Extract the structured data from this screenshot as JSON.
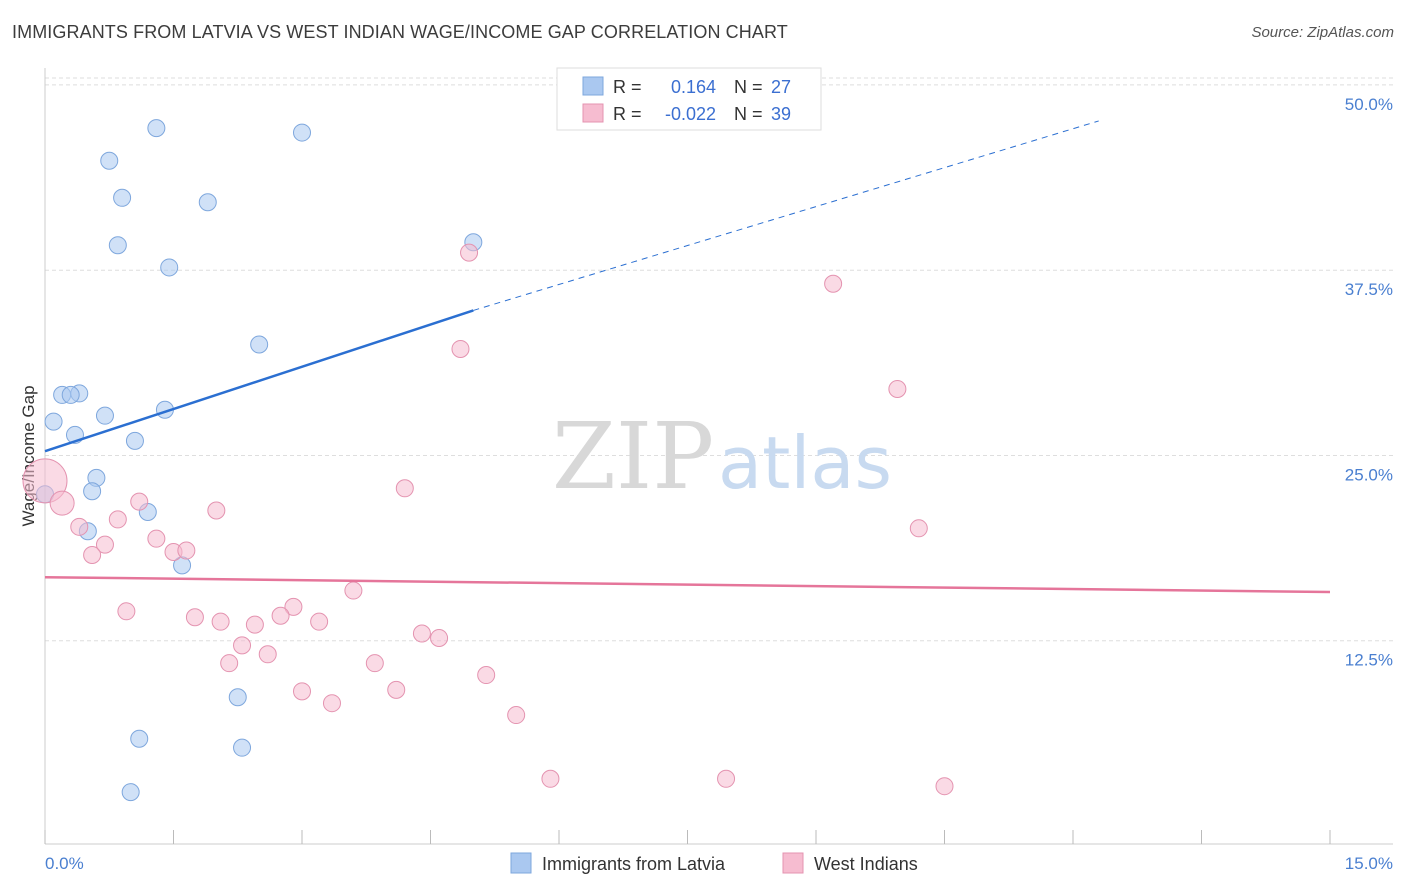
{
  "title": "IMMIGRANTS FROM LATVIA VS WEST INDIAN WAGE/INCOME GAP CORRELATION CHART",
  "source": "Source: ZipAtlas.com",
  "watermark": {
    "zip": "ZIP",
    "atlas": "atlas"
  },
  "chart_data": {
    "type": "scatter",
    "xlabel": "",
    "ylabel": "Wage/Income Gap",
    "xlim": [
      0.0,
      15.0
    ],
    "ylim": [
      0.0,
      52.0
    ],
    "x_tick_labels": [
      "0.0%",
      "15.0%"
    ],
    "y_ticks": [
      12.5,
      25.0,
      37.5,
      50.0
    ],
    "y_tick_labels": [
      "12.5%",
      "25.0%",
      "37.5%",
      "50.0%"
    ],
    "legend": {
      "entries": [
        {
          "label": "R =",
          "r": "0.164",
          "n_label": "N =",
          "n": "27",
          "color": "#aac8f0"
        },
        {
          "label": "R =",
          "r": "-0.022",
          "n_label": "N =",
          "n": "39",
          "color": "#f6bcd0"
        }
      ]
    },
    "series": [
      {
        "name": "Immigrants from Latvia",
        "color": "#aac8f0",
        "stroke": "#7ea7dd",
        "trend_color": "#2b6fd1",
        "trend": {
          "x0": 0.0,
          "y0": 26.5,
          "x1": 5.0,
          "y1": 36.0,
          "dash_to_x": 12.3,
          "dash_to_y": 50.0
        },
        "points": [
          {
            "x": 1.3,
            "y": 48.3
          },
          {
            "x": 3.0,
            "y": 48.0
          },
          {
            "x": 0.75,
            "y": 46.1
          },
          {
            "x": 0.9,
            "y": 43.6
          },
          {
            "x": 1.9,
            "y": 43.3
          },
          {
            "x": 5.0,
            "y": 40.6
          },
          {
            "x": 0.85,
            "y": 40.4
          },
          {
            "x": 1.45,
            "y": 38.9
          },
          {
            "x": 2.5,
            "y": 33.7
          },
          {
            "x": 0.2,
            "y": 30.3
          },
          {
            "x": 0.4,
            "y": 30.4
          },
          {
            "x": 0.3,
            "y": 30.3
          },
          {
            "x": 1.4,
            "y": 29.3
          },
          {
            "x": 0.7,
            "y": 28.9
          },
          {
            "x": 0.1,
            "y": 28.5
          },
          {
            "x": 0.35,
            "y": 27.6
          },
          {
            "x": 1.05,
            "y": 27.2
          },
          {
            "x": 0.6,
            "y": 24.7
          },
          {
            "x": 0.55,
            "y": 23.8
          },
          {
            "x": 0.0,
            "y": 23.6
          },
          {
            "x": 1.2,
            "y": 22.4
          },
          {
            "x": 0.5,
            "y": 21.1
          },
          {
            "x": 1.6,
            "y": 18.8
          },
          {
            "x": 2.25,
            "y": 9.9
          },
          {
            "x": 1.1,
            "y": 7.1
          },
          {
            "x": 2.3,
            "y": 6.5
          },
          {
            "x": 1.0,
            "y": 3.5
          }
        ]
      },
      {
        "name": "West Indians",
        "color": "#f6bcd0",
        "stroke": "#e493b0",
        "trend_color": "#e5759a",
        "trend": {
          "x0": 0.0,
          "y0": 18.0,
          "x1": 15.0,
          "y1": 17.0
        },
        "points": [
          {
            "x": 4.95,
            "y": 39.9
          },
          {
            "x": 9.2,
            "y": 37.8
          },
          {
            "x": 4.85,
            "y": 33.4
          },
          {
            "x": 9.95,
            "y": 30.7
          },
          {
            "x": 0.0,
            "y": 24.5
          },
          {
            "x": 0.2,
            "y": 23.0
          },
          {
            "x": 4.2,
            "y": 24.0
          },
          {
            "x": 1.1,
            "y": 23.1
          },
          {
            "x": 2.0,
            "y": 22.5
          },
          {
            "x": 0.85,
            "y": 21.9
          },
          {
            "x": 0.4,
            "y": 21.4
          },
          {
            "x": 10.2,
            "y": 21.3
          },
          {
            "x": 1.3,
            "y": 20.6
          },
          {
            "x": 0.7,
            "y": 20.2
          },
          {
            "x": 1.5,
            "y": 19.7
          },
          {
            "x": 1.65,
            "y": 19.8
          },
          {
            "x": 0.55,
            "y": 19.5
          },
          {
            "x": 3.6,
            "y": 17.1
          },
          {
            "x": 2.9,
            "y": 16.0
          },
          {
            "x": 0.95,
            "y": 15.7
          },
          {
            "x": 1.75,
            "y": 15.3
          },
          {
            "x": 2.75,
            "y": 15.4
          },
          {
            "x": 2.05,
            "y": 15.0
          },
          {
            "x": 3.2,
            "y": 15.0
          },
          {
            "x": 2.45,
            "y": 14.8
          },
          {
            "x": 4.4,
            "y": 14.2
          },
          {
            "x": 4.6,
            "y": 13.9
          },
          {
            "x": 2.3,
            "y": 13.4
          },
          {
            "x": 2.6,
            "y": 12.8
          },
          {
            "x": 2.15,
            "y": 12.2
          },
          {
            "x": 3.85,
            "y": 12.2
          },
          {
            "x": 5.15,
            "y": 11.4
          },
          {
            "x": 4.1,
            "y": 10.4
          },
          {
            "x": 3.0,
            "y": 10.3
          },
          {
            "x": 3.35,
            "y": 9.5
          },
          {
            "x": 5.5,
            "y": 8.7
          },
          {
            "x": 5.9,
            "y": 4.4
          },
          {
            "x": 7.95,
            "y": 4.4
          },
          {
            "x": 10.5,
            "y": 3.9
          }
        ]
      }
    ]
  }
}
